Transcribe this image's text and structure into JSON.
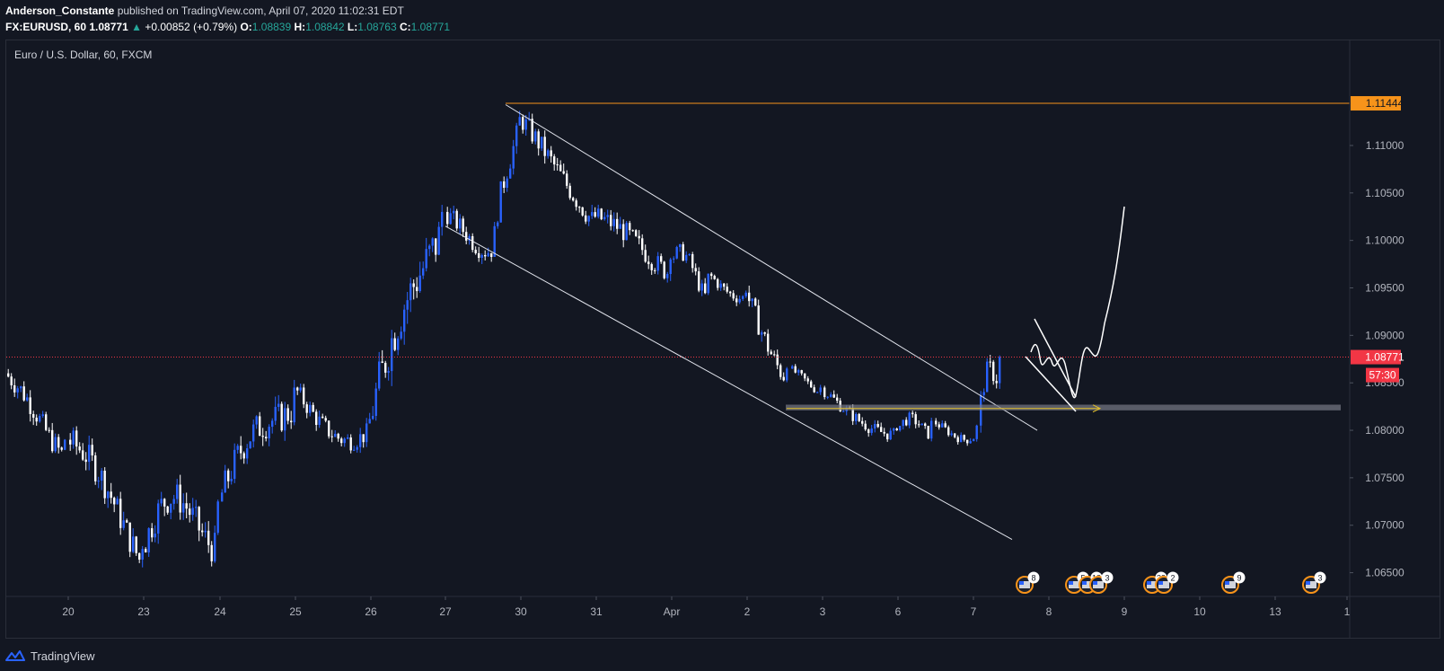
{
  "header": {
    "author": "Anderson_Constante",
    "published_text": "published on TradingView.com, April 07, 2020 11:02:31 EDT",
    "symbol": "FX:EURUSD, 60",
    "last": "1.08771",
    "change": "+0.00852 (+0.79%)",
    "open_label": "O:",
    "open": "1.08839",
    "high_label": "H:",
    "high": "1.08842",
    "low_label": "L:",
    "low": "1.08763",
    "close_label": "C:",
    "close": "1.08771"
  },
  "plot_title": "Euro / U.S. Dollar, 60, FXCM",
  "footer": {
    "brand": "TradingView"
  },
  "colors": {
    "background": "#131722",
    "up_candle": "#2962ff",
    "down_candle": "#ffffff",
    "resistance": "#f7931a",
    "price_tag": "#f23645",
    "support_zone": "#787b86"
  },
  "events": [
    {
      "day": "7.75",
      "label": "8"
    },
    {
      "day": "8.45",
      "label": "5"
    },
    {
      "day": "8.6",
      "label": "12"
    },
    {
      "day": "8.75",
      "label": "3"
    },
    {
      "day": "9.45",
      "label": "33"
    },
    {
      "day": "9.6",
      "label": "2"
    },
    {
      "day": "10.85",
      "label": "9"
    },
    {
      "day": "13.35",
      "label": "3"
    }
  ],
  "chart_data": {
    "type": "candlestick",
    "title": "Euro / U.S. Dollar, 60, FXCM",
    "timeframe_minutes": 60,
    "x_ticks": [
      "20",
      "23",
      "24",
      "25",
      "26",
      "27",
      "30",
      "31",
      "Apr",
      "2",
      "3",
      "6",
      "7",
      "8",
      "9",
      "10",
      "13",
      "1"
    ],
    "y_ticks": [
      "1.06500",
      "1.07000",
      "1.07500",
      "1.08000",
      "1.08500",
      "1.09000",
      "1.09500",
      "1.10000",
      "1.10500",
      "1.11000"
    ],
    "ylim": [
      1.0625,
      1.1187
    ],
    "price_labels": {
      "resistance": "1.11444",
      "last_price": "1.08771",
      "countdown": "57:30"
    },
    "resistance_level": 1.11444,
    "last_price_level": 1.08771,
    "support_zone": [
      1.0821,
      1.0827
    ],
    "support_arrow_level": 1.0823,
    "channel_upper": {
      "start": [
        30,
        1.1143
      ],
      "end": [
        7.8,
        1.08
      ]
    },
    "channel_lower": {
      "start": [
        27,
        1.1015
      ],
      "end": [
        7.55,
        1.0685
      ]
    },
    "sessions": [
      {
        "day": "19",
        "open": 1.086,
        "close": 1.079,
        "high": 1.0895,
        "low": 1.076
      },
      {
        "day": "20",
        "open": 1.079,
        "close": 1.0675,
        "high": 1.0825,
        "low": 1.0652
      },
      {
        "day": "23",
        "open": 1.0675,
        "close": 1.0725,
        "high": 1.083,
        "low": 1.0638
      },
      {
        "day": "24",
        "open": 1.0725,
        "close": 1.0845,
        "high": 1.089,
        "low": 1.07
      },
      {
        "day": "25",
        "open": 1.0845,
        "close": 1.0812,
        "high": 1.087,
        "low": 1.0755
      },
      {
        "day": "26",
        "open": 1.0812,
        "close": 1.103,
        "high": 1.107,
        "low": 1.079
      },
      {
        "day": "27",
        "open": 1.103,
        "close": 1.1015,
        "high": 1.1075,
        "low": 1.096
      },
      {
        "day": "29",
        "open": 1.1015,
        "close": 1.113,
        "high": 1.1148,
        "low": 1.0995
      },
      {
        "day": "30",
        "open": 1.113,
        "close": 1.1025,
        "high": 1.1145,
        "low": 1.101
      },
      {
        "day": "31",
        "open": 1.1025,
        "close": 1.098,
        "high": 1.1055,
        "low": 1.0925
      },
      {
        "day": "Apr",
        "open": 1.098,
        "close": 1.0965,
        "high": 1.1035,
        "low": 1.0935
      },
      {
        "day": "1",
        "open": 1.0965,
        "close": 1.0945,
        "high": 1.0975,
        "low": 1.09
      },
      {
        "day": "2",
        "open": 1.0945,
        "close": 1.0865,
        "high": 1.0965,
        "low": 1.0835
      },
      {
        "day": "3",
        "open": 1.0865,
        "close": 1.0845,
        "high": 1.0875,
        "low": 1.0822
      },
      {
        "day": "3b",
        "open": 1.0845,
        "close": 1.08,
        "high": 1.0855,
        "low": 1.0778
      },
      {
        "day": "6",
        "open": 1.08,
        "close": 1.081,
        "high": 1.084,
        "low": 1.0768
      },
      {
        "day": "6b",
        "open": 1.081,
        "close": 1.0805,
        "high": 1.083,
        "low": 1.0775
      },
      {
        "day": "7",
        "open": 1.0805,
        "close": 1.0877,
        "high": 1.0925,
        "low": 1.0795
      }
    ]
  }
}
